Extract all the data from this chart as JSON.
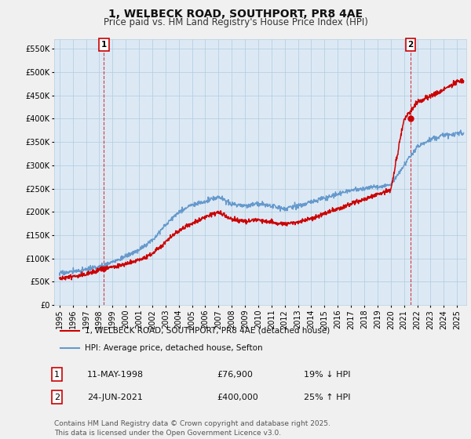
{
  "title": "1, WELBECK ROAD, SOUTHPORT, PR8 4AE",
  "subtitle": "Price paid vs. HM Land Registry's House Price Index (HPI)",
  "ylim": [
    0,
    570000
  ],
  "yticks": [
    0,
    50000,
    100000,
    150000,
    200000,
    250000,
    300000,
    350000,
    400000,
    450000,
    500000,
    550000
  ],
  "xlim_start": 1994.6,
  "xlim_end": 2025.7,
  "background_color": "#f0f0f0",
  "plot_bg": "#dce9f5",
  "grid_color": "#b8cfe0",
  "red_color": "#cc0000",
  "blue_color": "#6699cc",
  "marker1_date": 1998.36,
  "marker2_date": 2021.48,
  "marker1_value": 76900,
  "marker2_value": 400000,
  "legend_label_red": "1, WELBECK ROAD, SOUTHPORT, PR8 4AE (detached house)",
  "legend_label_blue": "HPI: Average price, detached house, Sefton",
  "annotation1": [
    "1",
    "11-MAY-1998",
    "£76,900",
    "19% ↓ HPI"
  ],
  "annotation2": [
    "2",
    "24-JUN-2021",
    "£400,000",
    "25% ↑ HPI"
  ],
  "footnote": "Contains HM Land Registry data © Crown copyright and database right 2025.\nThis data is licensed under the Open Government Licence v3.0.",
  "title_fontsize": 10,
  "subtitle_fontsize": 8.5,
  "tick_fontsize": 7,
  "legend_fontsize": 7.5,
  "annot_fontsize": 8,
  "footnote_fontsize": 6.5
}
